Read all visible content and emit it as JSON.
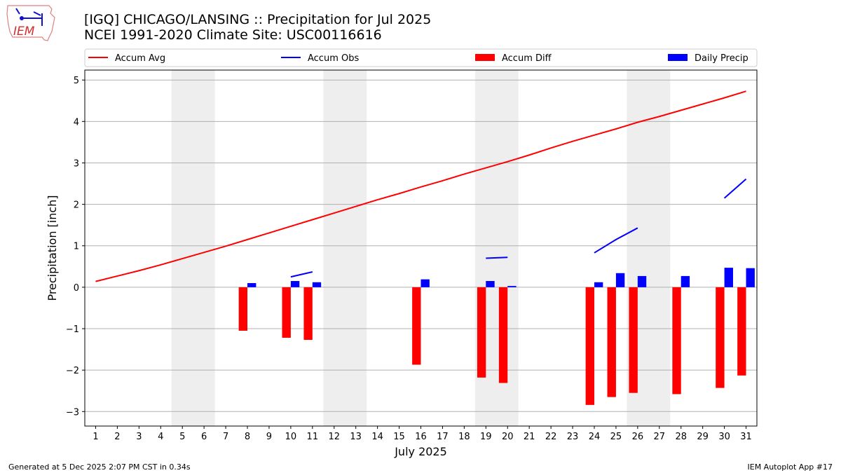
{
  "logo": {
    "text": "IEM"
  },
  "header": {
    "title_line1": "[IGQ] CHICAGO/LANSING :: Precipitation for Jul 2025",
    "title_line2": "NCEI 1991-2020 Climate Site: USC00116616"
  },
  "footer": {
    "generated": "Generated at 5 Dec 2025 2:07 PM CST in 0.34s",
    "app": "IEM Autoplot App #17"
  },
  "chart_data": {
    "type": "bar",
    "xlabel": "July 2025",
    "ylabel": "Precipitation [inch]",
    "xlim": [
      0.5,
      31.5
    ],
    "ylim": [
      -3.35,
      5.24
    ],
    "yticks": [
      -3,
      -2,
      -1,
      0,
      1,
      2,
      3,
      4,
      5
    ],
    "ytick_labels": [
      "−3",
      "−2",
      "−1",
      "0",
      "1",
      "2",
      "3",
      "4",
      "5"
    ],
    "x": [
      1,
      2,
      3,
      4,
      5,
      6,
      7,
      8,
      9,
      10,
      11,
      12,
      13,
      14,
      15,
      16,
      17,
      18,
      19,
      20,
      21,
      22,
      23,
      24,
      25,
      26,
      27,
      28,
      29,
      30,
      31
    ],
    "grid": "horizontal",
    "legend_placement": "top",
    "weekend_shading_start_days": [
      5,
      12,
      19,
      26
    ],
    "colors": {
      "avg": "#ff0000",
      "obs": "#0000ff",
      "diff": "#ff0000",
      "daily": "#0000ff",
      "weekend": "#eeeeee"
    },
    "legend": [
      "Accum Avg",
      "Accum Obs",
      "Accum Diff",
      "Daily Precip"
    ],
    "accum_avg": [
      0.14,
      0.27,
      0.4,
      0.54,
      0.69,
      0.84,
      0.99,
      1.15,
      1.31,
      1.47,
      1.63,
      1.79,
      1.95,
      2.11,
      2.26,
      2.42,
      2.57,
      2.73,
      2.88,
      3.03,
      3.19,
      3.36,
      3.52,
      3.67,
      3.82,
      3.98,
      4.12,
      4.27,
      4.42,
      4.57,
      4.73
    ],
    "accum_obs_segments": [
      {
        "days": [
          10,
          11
        ],
        "values": [
          0.25,
          0.37
        ]
      },
      {
        "days": [
          19,
          20
        ],
        "values": [
          0.7,
          0.72
        ]
      },
      {
        "days": [
          24,
          25,
          26
        ],
        "values": [
          0.83,
          1.15,
          1.43
        ]
      },
      {
        "days": [
          30,
          31
        ],
        "values": [
          2.15,
          2.61
        ]
      }
    ],
    "rain_days": [
      8,
      10,
      11,
      16,
      19,
      20,
      24,
      25,
      26,
      28,
      30,
      31
    ],
    "accum_diff": [
      -1.05,
      -1.22,
      -1.27,
      -1.87,
      -2.18,
      -2.31,
      -2.84,
      -2.65,
      -2.55,
      -2.58,
      -2.43,
      -2.13
    ],
    "daily_precip": [
      0.1,
      0.15,
      0.12,
      0.19,
      0.15,
      0.03,
      0.12,
      0.34,
      0.27,
      0.27,
      0.47,
      0.46
    ]
  }
}
